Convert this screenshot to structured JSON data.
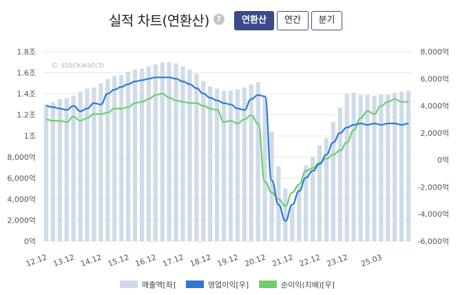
{
  "header": {
    "title": "실적 차트(연환산)",
    "help_icon": "?",
    "buttons": {
      "annualized": "연환산",
      "yearly": "연간",
      "quarterly": "분기"
    }
  },
  "colors": {
    "revenue": "#cfdbe8",
    "operating": "#2c78d4",
    "net": "#6ccf6c"
  },
  "chart_data": {
    "type": "bar+line",
    "watermark": "© stockwatch",
    "left_axis": {
      "range": [
        0,
        18000
      ],
      "ticks": [
        "0억",
        "2,000억",
        "4,000억",
        "6,000억",
        "8,000억",
        "1조",
        "1.2조",
        "1.4조",
        "1.6조",
        "1.8조"
      ]
    },
    "right_axis": {
      "range": [
        -6000,
        8000
      ],
      "ticks": [
        "-6,000억",
        "-4,000억",
        "-2,000억",
        "0억",
        "2,000억",
        "4,000억",
        "6,000억",
        "8,000억"
      ]
    },
    "x_tick_labels": [
      "12.12",
      "13.12",
      "14.12",
      "15.12",
      "16.12",
      "17.12",
      "18.12",
      "19.12",
      "20.12",
      "21.12",
      "22.12",
      "23.12",
      "25.03"
    ],
    "x_tick_positions": [
      0,
      4,
      8,
      12,
      16,
      20,
      24,
      28,
      32,
      36,
      40,
      44,
      49
    ],
    "series": [
      {
        "name": "매출액[좌]",
        "type": "bar",
        "axis": "left",
        "values": [
          13000,
          13200,
          13500,
          13600,
          13800,
          14200,
          14500,
          14600,
          15000,
          15400,
          15700,
          15800,
          16100,
          16300,
          16400,
          16600,
          16800,
          17000,
          17000,
          16900,
          16600,
          16300,
          15900,
          15200,
          14700,
          14500,
          14300,
          14300,
          14400,
          14600,
          14900,
          15100,
          13700,
          10400,
          7100,
          5000,
          3300,
          5300,
          7200,
          8000,
          9100,
          9800,
          11300,
          12700,
          14000,
          14100,
          13900,
          13900,
          13800,
          13900,
          13900,
          14100,
          14200,
          14300
        ]
      },
      {
        "name": "영업이익[우]",
        "type": "line",
        "axis": "right",
        "values": [
          4000,
          3900,
          3800,
          3700,
          4000,
          3600,
          3800,
          4200,
          4100,
          4900,
          5200,
          5400,
          5600,
          5800,
          5900,
          6000,
          6100,
          6100,
          6100,
          6000,
          5800,
          5600,
          5300,
          4900,
          4600,
          4400,
          4200,
          4100,
          3800,
          3700,
          4500,
          4800,
          4700,
          -1500,
          -3300,
          -4500,
          -3300,
          -2300,
          -1300,
          -800,
          -300,
          400,
          1300,
          2000,
          2400,
          2600,
          2700,
          2600,
          2700,
          2600,
          2700,
          2700,
          2600,
          2700
        ]
      },
      {
        "name": "순이익(지배)[우]",
        "type": "line",
        "axis": "right",
        "values": [
          3000,
          2900,
          2900,
          2800,
          3200,
          2900,
          3100,
          3400,
          3400,
          3500,
          3800,
          3800,
          3900,
          4200,
          4300,
          4500,
          4800,
          4900,
          4600,
          4400,
          4300,
          4200,
          4200,
          4000,
          3800,
          3700,
          2800,
          2900,
          2700,
          3000,
          3300,
          2700,
          -1600,
          -2400,
          -2900,
          -3400,
          -2400,
          -1800,
          -800,
          -600,
          -200,
          100,
          400,
          700,
          1300,
          2200,
          3100,
          3600,
          3400,
          4000,
          4300,
          4500,
          4300,
          4300
        ]
      }
    ]
  },
  "legend": {
    "revenue": "매출액[좌]",
    "operating": "영업이익[우]",
    "net": "순이익(지배)[우]"
  }
}
